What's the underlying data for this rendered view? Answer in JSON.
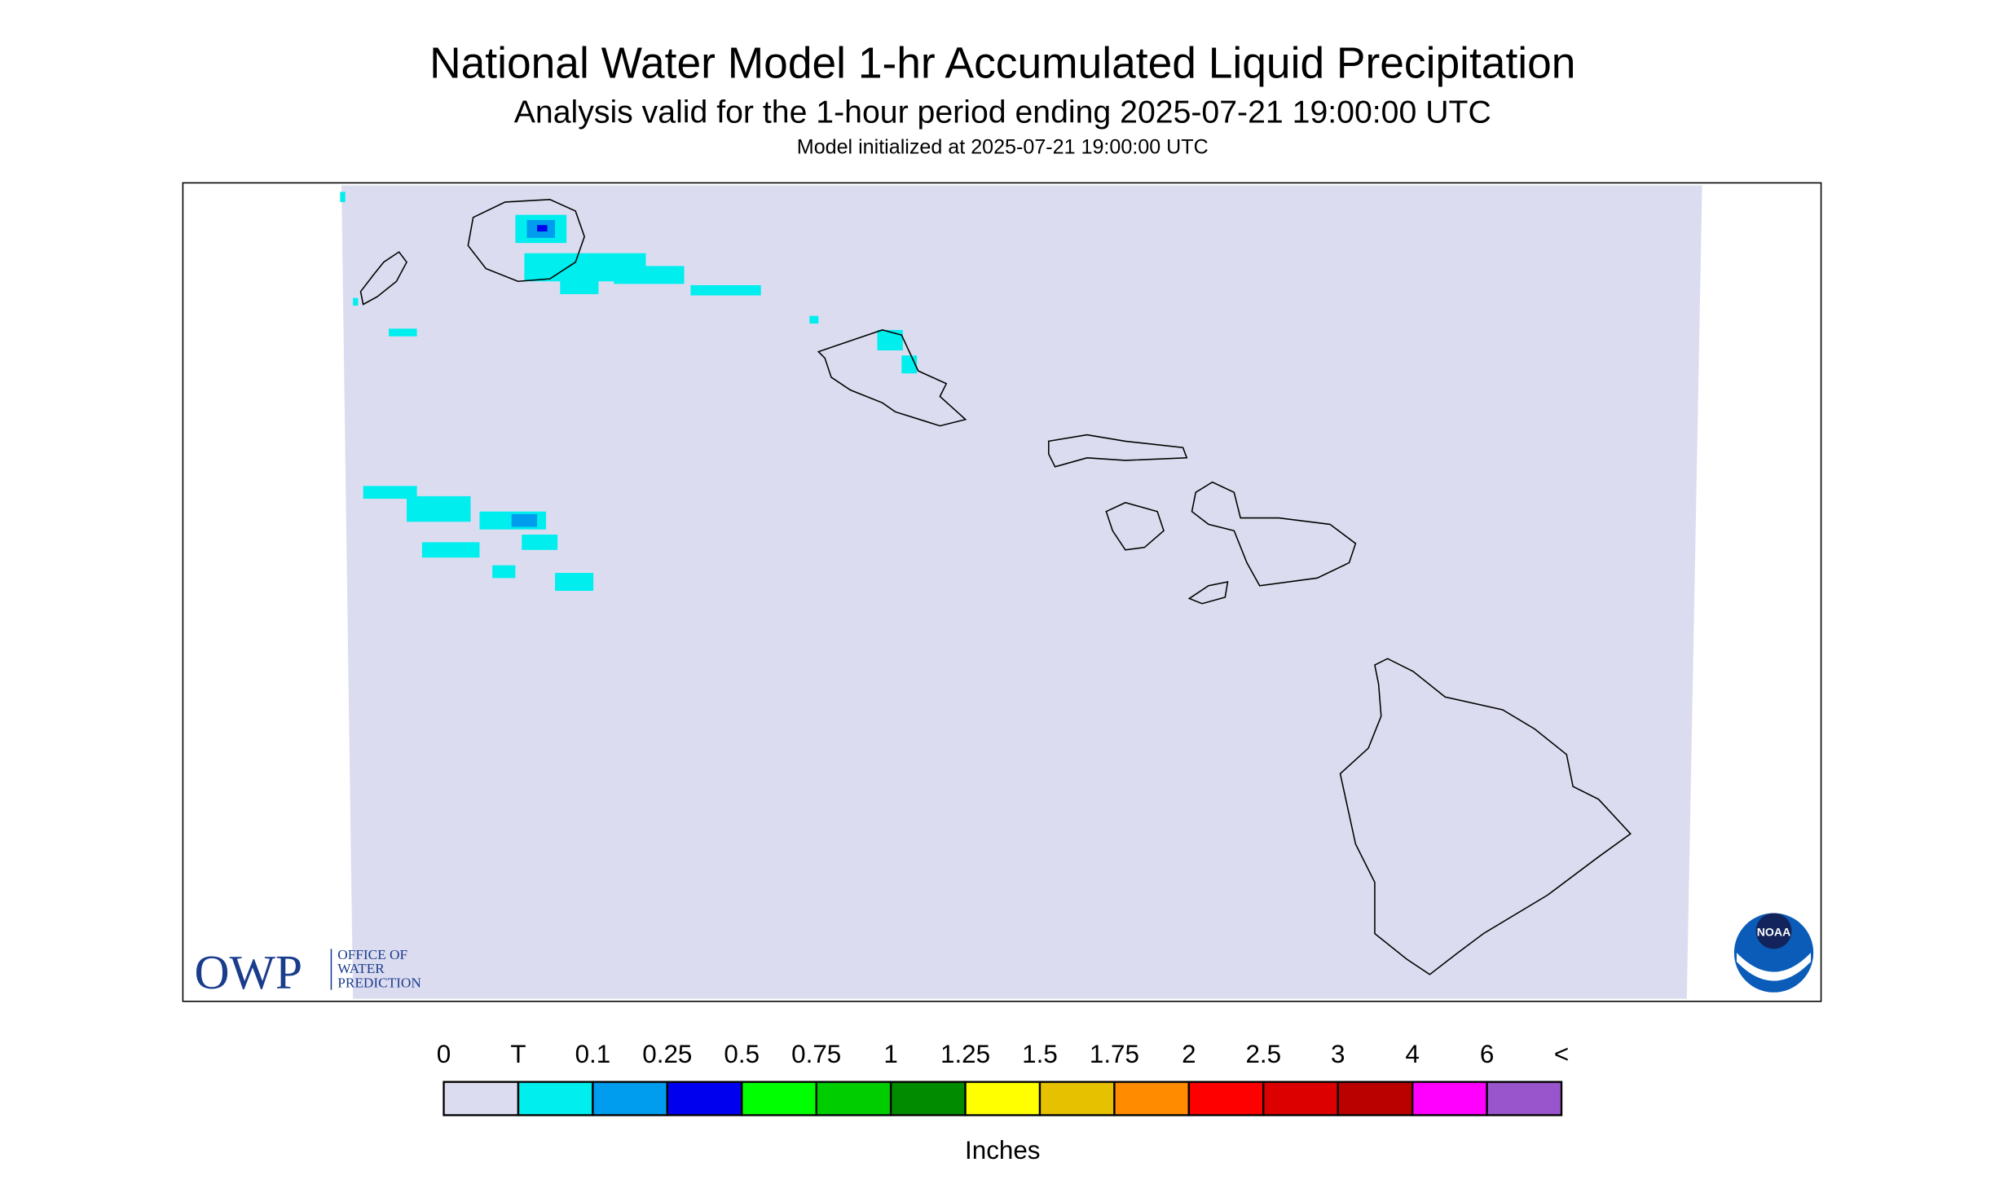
{
  "header": {
    "title": "National Water Model 1-hr Accumulated Liquid Precipitation",
    "subtitle": "Analysis valid for the 1-hour period ending 2025-07-21 19:00:00 UTC",
    "init": "Model initialized at 2025-07-21 19:00:00 UTC"
  },
  "legend": {
    "labels": [
      "0",
      "T",
      "0.1",
      "0.25",
      "0.5",
      "0.75",
      "1",
      "1.25",
      "1.5",
      "1.75",
      "2",
      "2.5",
      "3",
      "4",
      "6",
      "<"
    ],
    "colors": [
      "#dcdcf0",
      "#00eeee",
      "#009cee",
      "#0000ee",
      "#00ff00",
      "#00cd00",
      "#008b00",
      "#ffff00",
      "#e5c100",
      "#ff8c00",
      "#ff0000",
      "#dd0000",
      "#bb0000",
      "#ff00ff",
      "#9955cc"
    ],
    "unit": "Inches"
  },
  "logos": {
    "owp": "OWP",
    "owp_lines": [
      "OFFICE OF",
      "WATER",
      "PREDICTION"
    ],
    "noaa": "NOAA"
  }
}
